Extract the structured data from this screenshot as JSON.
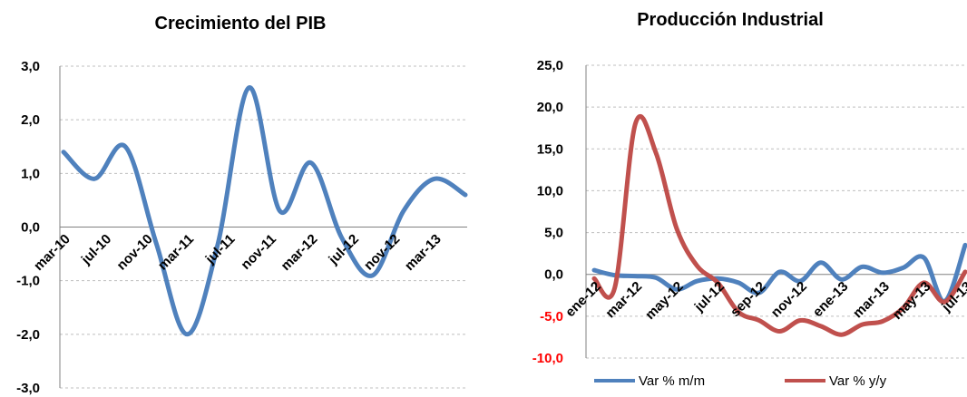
{
  "chart_data": [
    {
      "type": "line",
      "title": "Crecimiento del PIB",
      "xlabel": "",
      "ylabel": "",
      "ylim": [
        -3.0,
        3.0
      ],
      "yticks": [
        "3,0",
        "2,0",
        "1,0",
        "0,0",
        "-1,0",
        "-2,0",
        "-3,0"
      ],
      "x_tick_labels": [
        "mar-10",
        "jul-10",
        "nov-10",
        "mar-11",
        "jul-11",
        "nov-11",
        "mar-12",
        "jul-12",
        "nov-12",
        "mar-13"
      ],
      "grid": true,
      "colors": {
        "line": "#4f81bd",
        "grid": "#bfbfbf",
        "axis": "#808080"
      },
      "series": [
        {
          "values": [
            1.4,
            0.9,
            1.5,
            -0.3,
            -2.0,
            -0.3,
            2.6,
            0.3,
            1.2,
            -0.2,
            -0.9,
            0.3,
            0.9,
            0.6
          ]
        }
      ]
    },
    {
      "type": "line",
      "title": "Producción Industrial",
      "xlabel": "",
      "ylabel": "",
      "ylim": [
        -10.0,
        25.0
      ],
      "yticks": [
        "25,0",
        "20,0",
        "15,0",
        "10,0",
        "5,0",
        "0,0",
        "-5,0",
        "-10,0"
      ],
      "x_tick_labels": [
        "ene-12",
        "mar-12",
        "may-12",
        "jul-12",
        "sep-12",
        "nov-12",
        "ene-13",
        "mar-13",
        "may-13",
        "jul-13"
      ],
      "grid": true,
      "legend_position": "bottom",
      "colors": {
        "grid": "#bfbfbf",
        "axis": "#808080",
        "positive_tick": "#000000",
        "negative_tick": "#ff0000"
      },
      "series": [
        {
          "name": "Var % m/m",
          "color": "#4f81bd",
          "values": [
            0.5,
            -0.1,
            -0.2,
            -0.4,
            -1.8,
            -0.8,
            -0.5,
            -1.0,
            -2.2,
            0.3,
            -0.8,
            1.4,
            -0.6,
            0.9,
            0.2,
            0.8,
            2.0,
            -3.2,
            3.5
          ]
        },
        {
          "name": "Var % y/y",
          "color": "#c0504d",
          "values": [
            -0.5,
            -1.6,
            18.0,
            14.5,
            5.5,
            1.0,
            -1.0,
            -4.5,
            -5.5,
            -6.8,
            -5.5,
            -6.2,
            -7.2,
            -6.0,
            -5.6,
            -4.0,
            -1.0,
            -3.3,
            0.3
          ]
        }
      ]
    }
  ]
}
